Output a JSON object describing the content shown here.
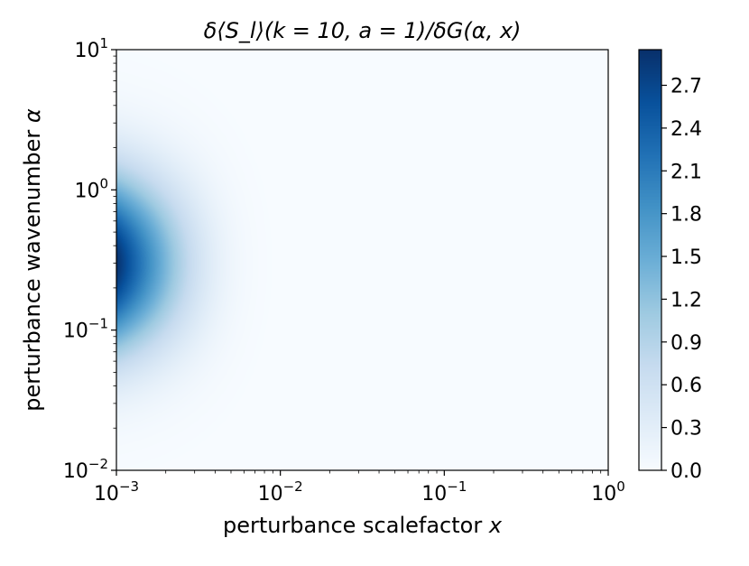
{
  "chart_data": {
    "type": "heatmap",
    "title": "δ⟨S_l⟩(k = 10, a = 1)/δG(α, x)",
    "xlabel": "perturbance scalefactor x",
    "ylabel": "perturbance wavenumber α",
    "xscale": "log",
    "yscale": "log",
    "xlim": [
      0.001,
      1
    ],
    "ylim": [
      0.01,
      10
    ],
    "x_ticks": [
      {
        "value": 0.001,
        "base": "10",
        "exp": "−3"
      },
      {
        "value": 0.01,
        "base": "10",
        "exp": "−2"
      },
      {
        "value": 0.1,
        "base": "10",
        "exp": "−1"
      },
      {
        "value": 1,
        "base": "10",
        "exp": "0"
      }
    ],
    "y_ticks": [
      {
        "value": 0.01,
        "base": "10",
        "exp": "−2"
      },
      {
        "value": 0.1,
        "base": "10",
        "exp": "−1"
      },
      {
        "value": 1,
        "base": "10",
        "exp": "0"
      },
      {
        "value": 10,
        "base": "10",
        "exp": "1"
      }
    ],
    "colormap": "Blues",
    "colormap_stops": [
      "#f7fbff",
      "#deebf7",
      "#c6dbef",
      "#9ecae1",
      "#6baed6",
      "#4292c6",
      "#2171b5",
      "#08519c",
      "#08306b"
    ],
    "color_range": [
      0.0,
      2.95
    ],
    "colorbar_ticks": [
      "0.0",
      "0.3",
      "0.6",
      "0.9",
      "1.2",
      "1.5",
      "1.8",
      "2.1",
      "2.4",
      "2.7"
    ],
    "field": {
      "peak_value": 2.95,
      "peak_x": 0.001,
      "peak_alpha": 0.3,
      "x_decay_scale": 0.0013,
      "alpha_log_width": 0.62
    },
    "grid": false,
    "legend": "none"
  }
}
